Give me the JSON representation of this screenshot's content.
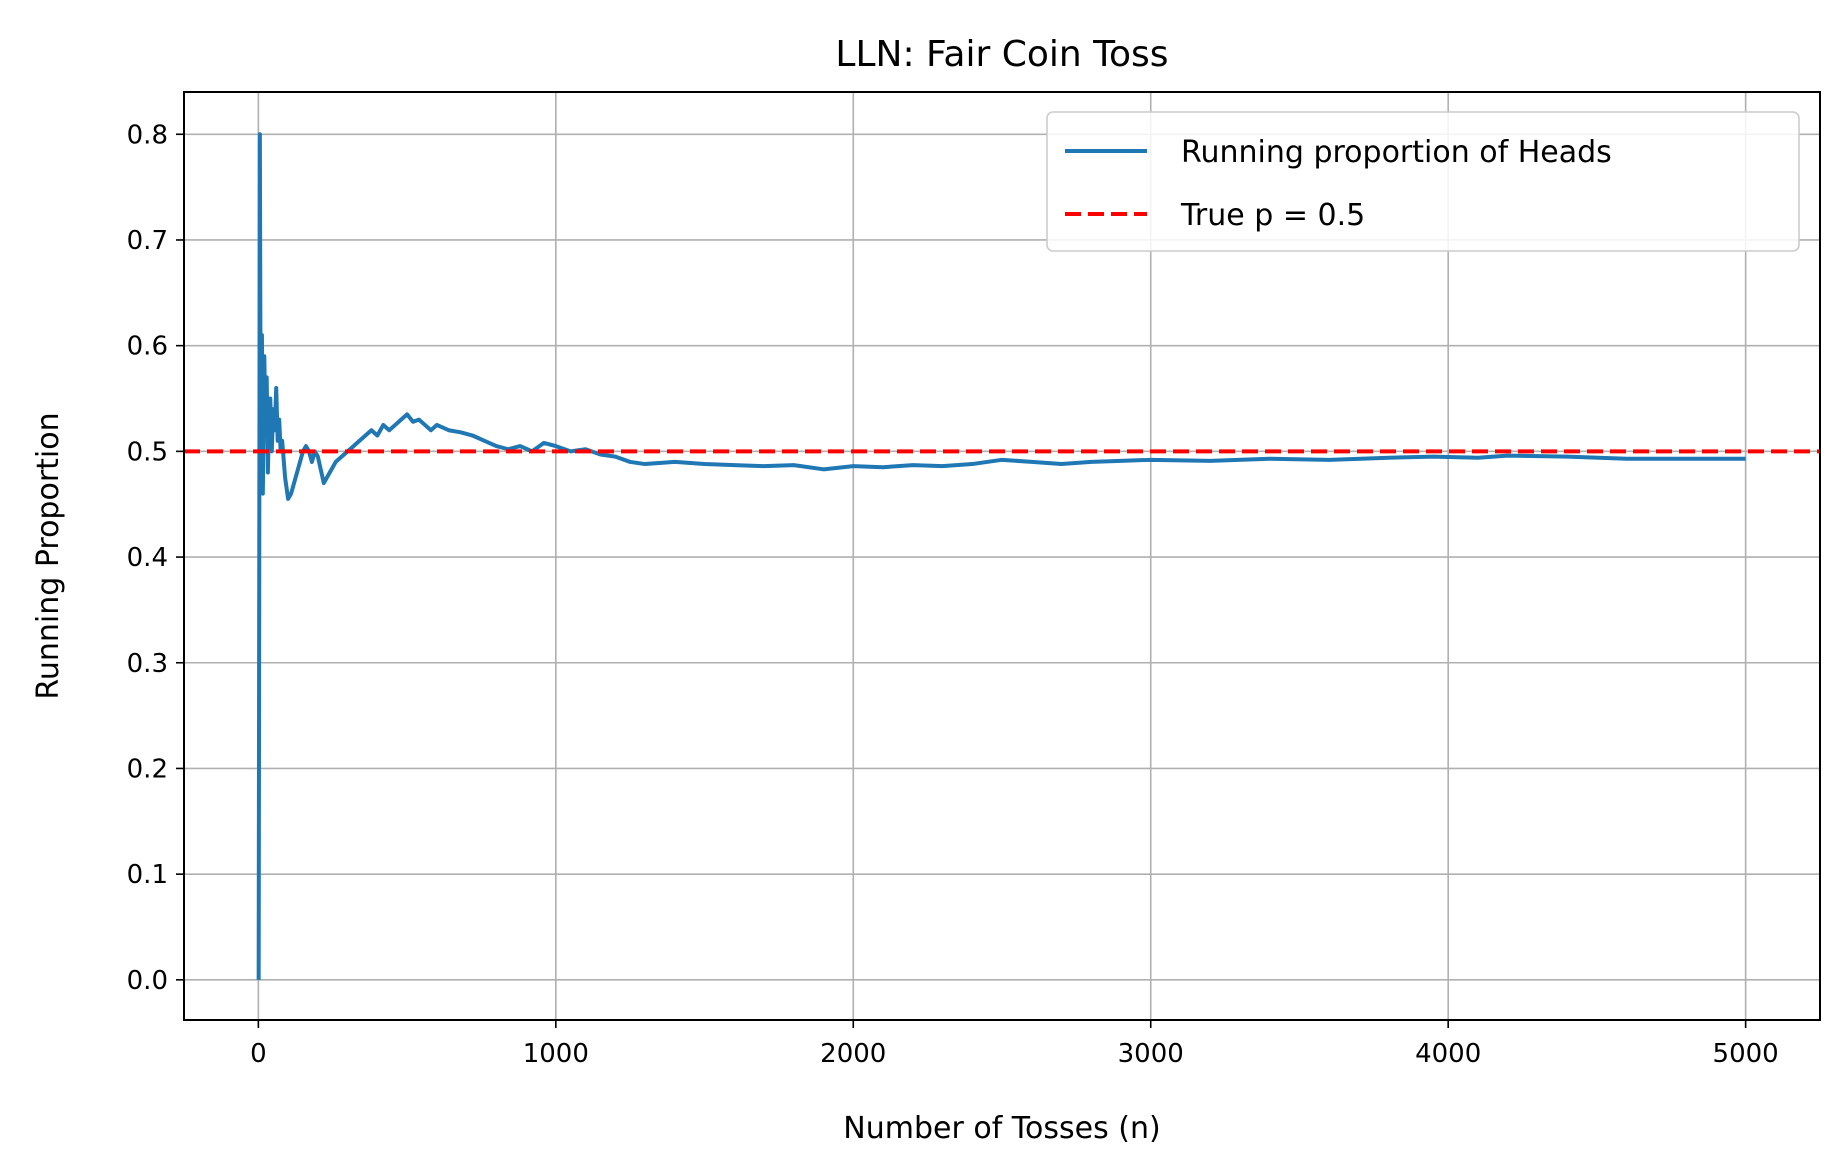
{
  "chart_data": {
    "type": "line",
    "title": "LLN: Fair Coin Toss",
    "xlabel": "Number of Tosses (n)",
    "ylabel": "Running Proportion",
    "xlim": [
      -250,
      5250
    ],
    "ylim": [
      -0.038,
      0.84
    ],
    "xticks": [
      0,
      1000,
      2000,
      3000,
      4000,
      5000
    ],
    "xtick_labels": [
      "0",
      "1000",
      "2000",
      "3000",
      "4000",
      "5000"
    ],
    "yticks": [
      0.0,
      0.1,
      0.2,
      0.3,
      0.4,
      0.5,
      0.6,
      0.7,
      0.8
    ],
    "ytick_labels": [
      "0.0",
      "0.1",
      "0.2",
      "0.3",
      "0.4",
      "0.5",
      "0.6",
      "0.7",
      "0.8"
    ],
    "grid": true,
    "legend_position": "top-right",
    "series": [
      {
        "name": "Running proportion of Heads",
        "color": "#1f77b4",
        "style": "solid",
        "x": [
          1,
          5,
          8,
          12,
          15,
          20,
          24,
          28,
          32,
          36,
          40,
          45,
          50,
          55,
          60,
          65,
          70,
          75,
          80,
          90,
          100,
          110,
          120,
          130,
          140,
          150,
          160,
          170,
          180,
          190,
          200,
          220,
          240,
          250,
          260,
          280,
          300,
          320,
          340,
          360,
          380,
          400,
          420,
          440,
          460,
          480,
          500,
          520,
          540,
          560,
          580,
          600,
          640,
          680,
          720,
          760,
          800,
          840,
          880,
          920,
          960,
          1000,
          1050,
          1100,
          1150,
          1200,
          1250,
          1300,
          1400,
          1500,
          1600,
          1700,
          1800,
          1900,
          2000,
          2100,
          2200,
          2300,
          2400,
          2500,
          2600,
          2700,
          2800,
          2900,
          3000,
          3200,
          3400,
          3600,
          3800,
          3950,
          4100,
          4200,
          4400,
          4600,
          4800,
          5000
        ],
        "y": [
          0.0,
          0.8,
          0.5,
          0.61,
          0.46,
          0.59,
          0.52,
          0.57,
          0.48,
          0.53,
          0.55,
          0.5,
          0.54,
          0.52,
          0.56,
          0.51,
          0.53,
          0.5,
          0.51,
          0.475,
          0.455,
          0.46,
          0.47,
          0.48,
          0.49,
          0.5,
          0.505,
          0.5,
          0.49,
          0.5,
          0.495,
          0.47,
          0.48,
          0.485,
          0.49,
          0.495,
          0.5,
          0.505,
          0.51,
          0.515,
          0.52,
          0.515,
          0.525,
          0.52,
          0.525,
          0.53,
          0.535,
          0.528,
          0.53,
          0.525,
          0.52,
          0.525,
          0.52,
          0.518,
          0.515,
          0.51,
          0.505,
          0.502,
          0.505,
          0.5,
          0.508,
          0.505,
          0.5,
          0.502,
          0.497,
          0.495,
          0.49,
          0.488,
          0.49,
          0.488,
          0.487,
          0.486,
          0.487,
          0.483,
          0.486,
          0.485,
          0.487,
          0.486,
          0.488,
          0.492,
          0.49,
          0.488,
          0.49,
          0.491,
          0.492,
          0.491,
          0.493,
          0.492,
          0.494,
          0.495,
          0.494,
          0.496,
          0.495,
          0.493,
          0.493,
          0.493
        ]
      },
      {
        "name": "True p = 0.5",
        "color": "#ff0000",
        "style": "dashed",
        "y_const": 0.5
      }
    ]
  }
}
